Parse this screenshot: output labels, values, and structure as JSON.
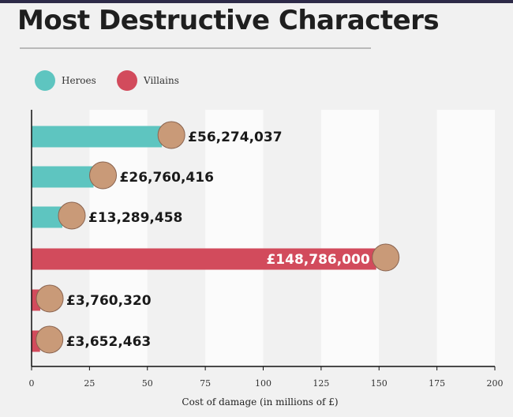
{
  "title": "Most Destructive Characters",
  "legend": [
    {
      "label": "Heroes",
      "color": "#5ec5c0"
    },
    {
      "label": "Villains",
      "color": "#d24b5c"
    }
  ],
  "chart_data": {
    "type": "bar",
    "orientation": "horizontal",
    "xlabel": "Cost of damage (in millions of £)",
    "xlim": [
      0,
      200
    ],
    "xticks": [
      0,
      25,
      50,
      75,
      100,
      125,
      150,
      175,
      200
    ],
    "grid": "alternating vertical bands",
    "legend_placement": "top-left",
    "bars": [
      {
        "group": "Heroes",
        "value": 56.274037,
        "label": "£56,274,037",
        "color": "#5ec5c0"
      },
      {
        "group": "Heroes",
        "value": 26.760416,
        "label": "£26,760,416",
        "color": "#5ec5c0"
      },
      {
        "group": "Heroes",
        "value": 13.289458,
        "label": "£13,289,458",
        "color": "#5ec5c0"
      },
      {
        "group": "Villains",
        "value": 148.786,
        "label": "£148,786,000",
        "color": "#d24b5c"
      },
      {
        "group": "Villains",
        "value": 3.76032,
        "label": "£3,760,320",
        "color": "#d24b5c"
      },
      {
        "group": "Villains",
        "value": 3.652463,
        "label": "£3,652,463",
        "color": "#d24b5c"
      }
    ]
  }
}
